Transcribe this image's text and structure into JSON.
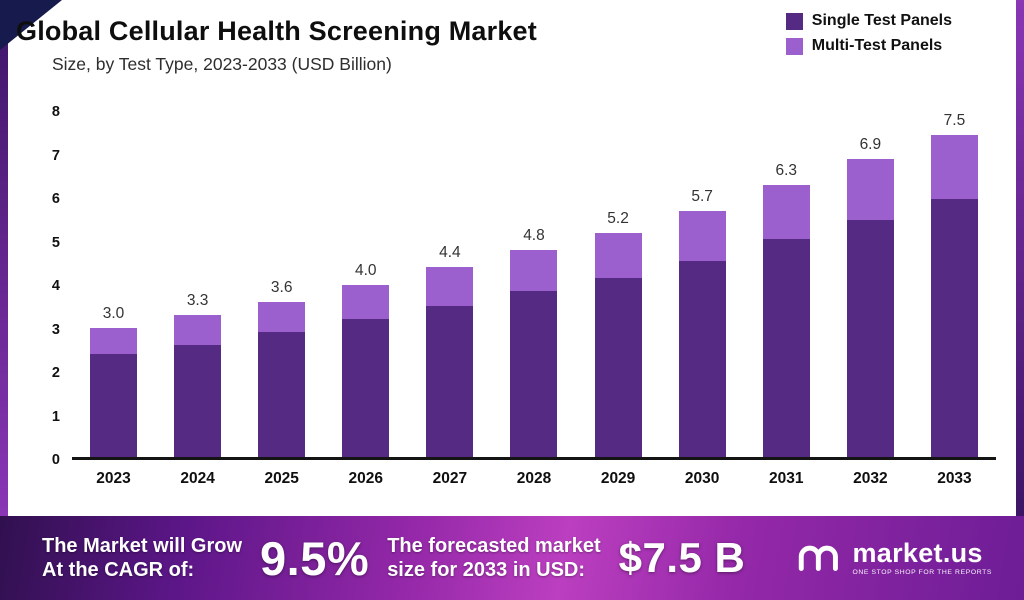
{
  "header": {
    "title": "Global Cellular Health Screening Market",
    "subtitle": "Size, by Test Type, 2023-2033 (USD Billion)"
  },
  "legend": [
    {
      "label": "Single Test Panels",
      "color": "#552a82"
    },
    {
      "label": "Multi-Test Panels",
      "color": "#9c5fce"
    }
  ],
  "chart_data": {
    "type": "bar",
    "stacked": true,
    "title": "Global Cellular Health Screening Market Size, by Test Type, 2023-2033 (USD Billion)",
    "categories": [
      "2023",
      "2024",
      "2025",
      "2026",
      "2027",
      "2028",
      "2029",
      "2030",
      "2031",
      "2032",
      "2033"
    ],
    "series": [
      {
        "name": "Single Test Panels",
        "color": "#552a82",
        "values": [
          2.4,
          2.6,
          2.9,
          3.2,
          3.5,
          3.85,
          4.15,
          4.55,
          5.05,
          5.5,
          6.0
        ]
      },
      {
        "name": "Multi-Test Panels",
        "color": "#9c5fce",
        "values": [
          0.6,
          0.7,
          0.7,
          0.8,
          0.9,
          0.95,
          1.05,
          1.15,
          1.25,
          1.4,
          1.5
        ]
      }
    ],
    "totals": [
      "3.0",
      "3.3",
      "3.6",
      "4.0",
      "4.4",
      "4.8",
      "5.2",
      "5.7",
      "6.3",
      "6.9",
      "7.5"
    ],
    "xlabel": "",
    "ylabel": "",
    "ylim": [
      0,
      8
    ],
    "yticks": [
      0,
      1,
      2,
      3,
      4,
      5,
      6,
      7,
      8
    ],
    "grid": false,
    "legend_position": "top-right"
  },
  "banner": {
    "cagr_label_line1": "The Market will Grow",
    "cagr_label_line2": "At the CAGR of:",
    "cagr_value": "9.5%",
    "forecast_label_line1": "The forecasted market",
    "forecast_label_line2": "size for 2033 in USD:",
    "forecast_value": "$7.5 B",
    "brand": "market.us",
    "brand_tagline": "ONE STOP SHOP FOR THE REPORTS"
  }
}
